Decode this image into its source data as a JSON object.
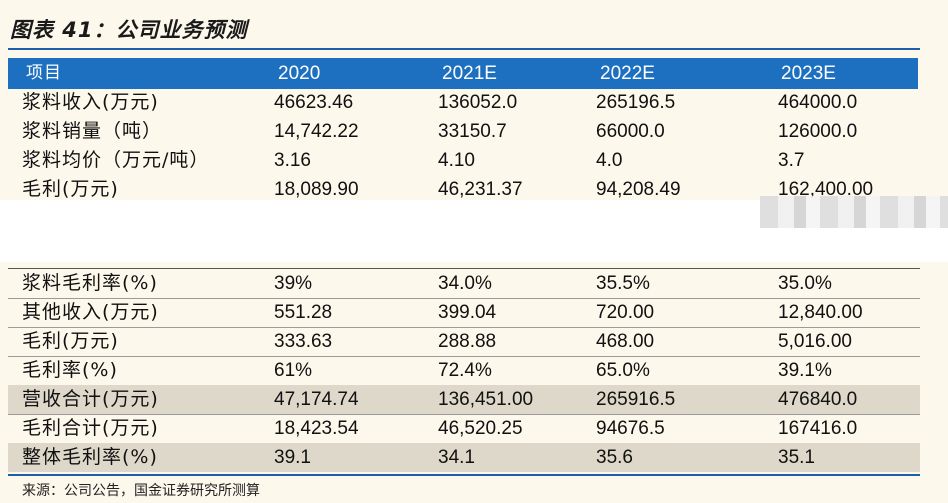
{
  "title": "图表 41：公司业务预测",
  "header": [
    "项目",
    "2020",
    "2021E",
    "2022E",
    "2023E"
  ],
  "table_top": [
    [
      "浆料收入(万元)",
      "46623.46",
      "136052.0",
      "265196.5",
      "464000.0"
    ],
    [
      "浆料销量（吨）",
      "14,742.22",
      "33150.7",
      "66000.0",
      "126000.0"
    ],
    [
      "浆料均价（万元/吨）",
      "3.16",
      "4.10",
      "4.0",
      "3.7"
    ],
    [
      "毛利(万元)",
      "18,089.90",
      "46,231.37",
      "94,208.49",
      "162,400.00"
    ]
  ],
  "table_bottom": [
    [
      "浆料毛利率(%)",
      "39%",
      "34.0%",
      "35.5%",
      "35.0%"
    ],
    [
      "其他收入(万元)",
      "551.28",
      "399.04",
      "720.00",
      "12,840.00"
    ],
    [
      "毛利(万元)",
      "333.63",
      "288.88",
      "468.00",
      "5,016.00"
    ],
    [
      "毛利率(%)",
      "61%",
      "72.4%",
      "65.0%",
      "39.1%"
    ],
    [
      "营收合计(万元)",
      "47,174.74",
      "136,451.00",
      "265916.5",
      "476840.0"
    ],
    [
      "毛利合计(万元)",
      "18,423.54",
      "46,520.25",
      "94676.5",
      "167416.0"
    ],
    [
      "整体毛利率(%)",
      "39.1",
      "34.1",
      "35.6",
      "35.1"
    ]
  ],
  "source": "来源：公司公告，国金证券研究所测算",
  "colors": {
    "header_bg": "#1d6fbf",
    "panel_bg": "#fdf8ec",
    "shade": "#ddd8c9"
  }
}
